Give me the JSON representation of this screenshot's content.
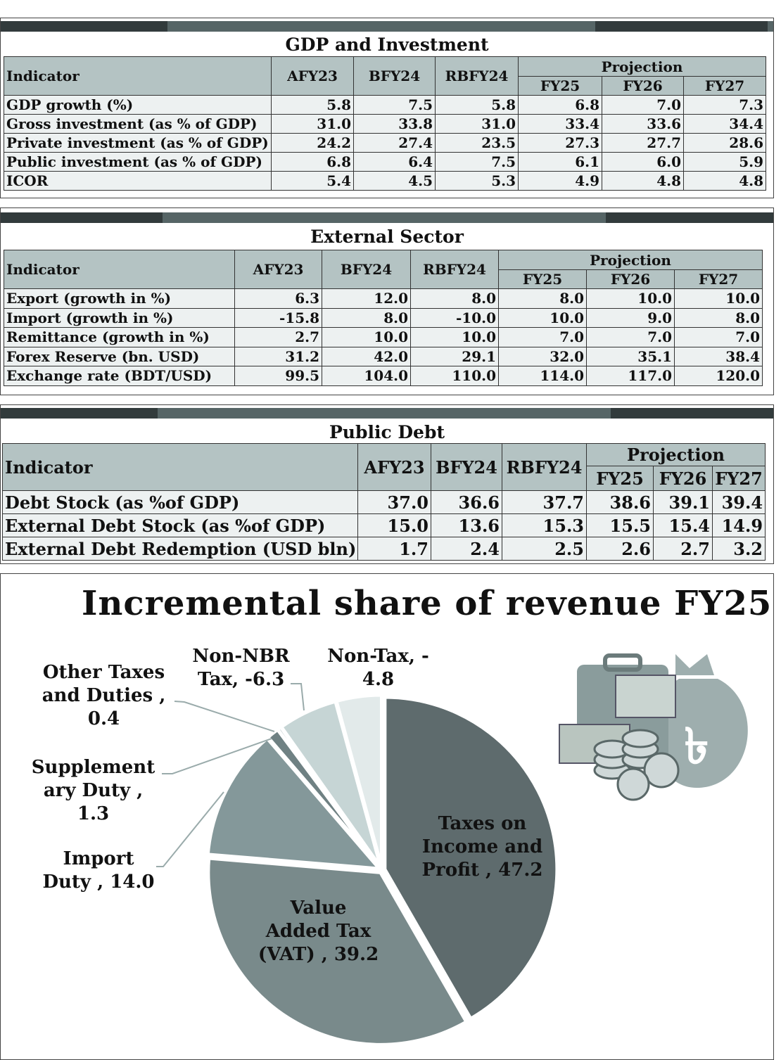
{
  "tables": [
    {
      "title": "GDP and Investment",
      "header": {
        "indicator": "Indicator",
        "cols": [
          "AFY23",
          "BFY24",
          "RBFY24"
        ],
        "group": "Projection",
        "group_cols": [
          "FY25",
          "FY26",
          "FY27"
        ]
      },
      "rows": [
        {
          "label": "GDP growth (%)",
          "values": [
            "5.8",
            "7.5",
            "5.8",
            "6.8",
            "7.0",
            "7.3"
          ]
        },
        {
          "label": "Gross investment (as % of GDP)",
          "values": [
            "31.0",
            "33.8",
            "31.0",
            "33.4",
            "33.6",
            "34.4"
          ]
        },
        {
          "label": "Private investment (as % of GDP)",
          "values": [
            "24.2",
            "27.4",
            "23.5",
            "27.3",
            "27.7",
            "28.6"
          ]
        },
        {
          "label": "Public investment (as % of GDP)",
          "values": [
            "6.8",
            "6.4",
            "7.5",
            "6.1",
            "6.0",
            "5.9"
          ]
        },
        {
          "label": "ICOR",
          "values": [
            "5.4",
            "4.5",
            "5.3",
            "4.9",
            "4.8",
            "4.8"
          ]
        }
      ]
    },
    {
      "title": "External Sector",
      "header": {
        "indicator": "Indicator",
        "cols": [
          "AFY23",
          "BFY24",
          "RBFY24"
        ],
        "group": "Projection",
        "group_cols": [
          "FY25",
          "FY26",
          "FY27"
        ]
      },
      "rows": [
        {
          "label": "Export (growth in %)",
          "values": [
            "6.3",
            "12.0",
            "8.0",
            "8.0",
            "10.0",
            "10.0"
          ]
        },
        {
          "label": "Import (growth in %)",
          "values": [
            "-15.8",
            "8.0",
            "-10.0",
            "10.0",
            "9.0",
            "8.0"
          ]
        },
        {
          "label": "Remittance (growth in %)",
          "values": [
            "2.7",
            "10.0",
            "10.0",
            "7.0",
            "7.0",
            "7.0"
          ]
        },
        {
          "label": "Forex Reserve (bn. USD)",
          "values": [
            "31.2",
            "42.0",
            "29.1",
            "32.0",
            "35.1",
            "38.4"
          ]
        },
        {
          "label": "Exchange rate (BDT/USD)",
          "values": [
            "99.5",
            "104.0",
            "110.0",
            "114.0",
            "117.0",
            "120.0"
          ]
        }
      ]
    },
    {
      "title": "Public Debt",
      "header": {
        "indicator": "Indicator",
        "cols": [
          "AFY23",
          "BFY24",
          "RBFY24"
        ],
        "group": "Projection",
        "group_cols": [
          "FY25",
          "FY26",
          "FY27"
        ]
      },
      "rows": [
        {
          "label": "Debt Stock (as %of GDP)",
          "values": [
            "37.0",
            "36.6",
            "37.7",
            "38.6",
            "39.1",
            "39.4"
          ]
        },
        {
          "label": "External Debt Stock (as %of GDP)",
          "values": [
            "15.0",
            "13.6",
            "15.3",
            "15.5",
            "15.4",
            "14.9"
          ]
        },
        {
          "label": "External Debt Redemption (USD bln)",
          "values": [
            "1.7",
            "2.4",
            "2.5",
            "2.6",
            "2.7",
            "3.2"
          ]
        }
      ]
    }
  ],
  "chart_data": {
    "type": "pie",
    "title": "Incremental share of revenue FY25",
    "slices": [
      {
        "name": "Taxes on Income and Profit",
        "value": 47.2,
        "label_lines": [
          "Taxes on",
          "Income and",
          "Profit , 47.2"
        ],
        "color": "#5e6b6d"
      },
      {
        "name": "Value Added Tax (VAT)",
        "value": 39.2,
        "label_lines": [
          "Value",
          "Added Tax",
          "(VAT) , 39.2"
        ],
        "color": "#798a8b"
      },
      {
        "name": "Import Duty",
        "value": 14.0,
        "label_lines": [
          "Import",
          "Duty , 14.0"
        ],
        "color": "#84989a"
      },
      {
        "name": "Supplementary Duty",
        "value": 1.3,
        "label_lines": [
          "Supplement",
          "ary Duty ,",
          "1.3"
        ],
        "color": "#6f8183"
      },
      {
        "name": "Other Taxes and Duties",
        "value": 0.4,
        "label_lines": [
          "Other Taxes",
          "and Duties ,",
          "0.4"
        ],
        "color": "#8fa2a3"
      },
      {
        "name": "Non-NBR Tax",
        "value": -6.3,
        "label_lines": [
          "Non-NBR",
          "Tax, -6.3"
        ],
        "color": "#c6d5d5"
      },
      {
        "name": "Non-Tax",
        "value": -4.8,
        "label_lines": [
          "Non-Tax, -",
          "4.8"
        ],
        "color": "#e2eaea"
      }
    ],
    "legend": "none",
    "start_angle": "12 o'clock, clockwise"
  },
  "decoration": {
    "icon": "money-bag-and-coins-icon"
  },
  "colors": {
    "header_bg": "#b4c3c3",
    "row_bg": "#edf1f1",
    "bar": "#566566",
    "bar_dark": "#323b3c"
  }
}
